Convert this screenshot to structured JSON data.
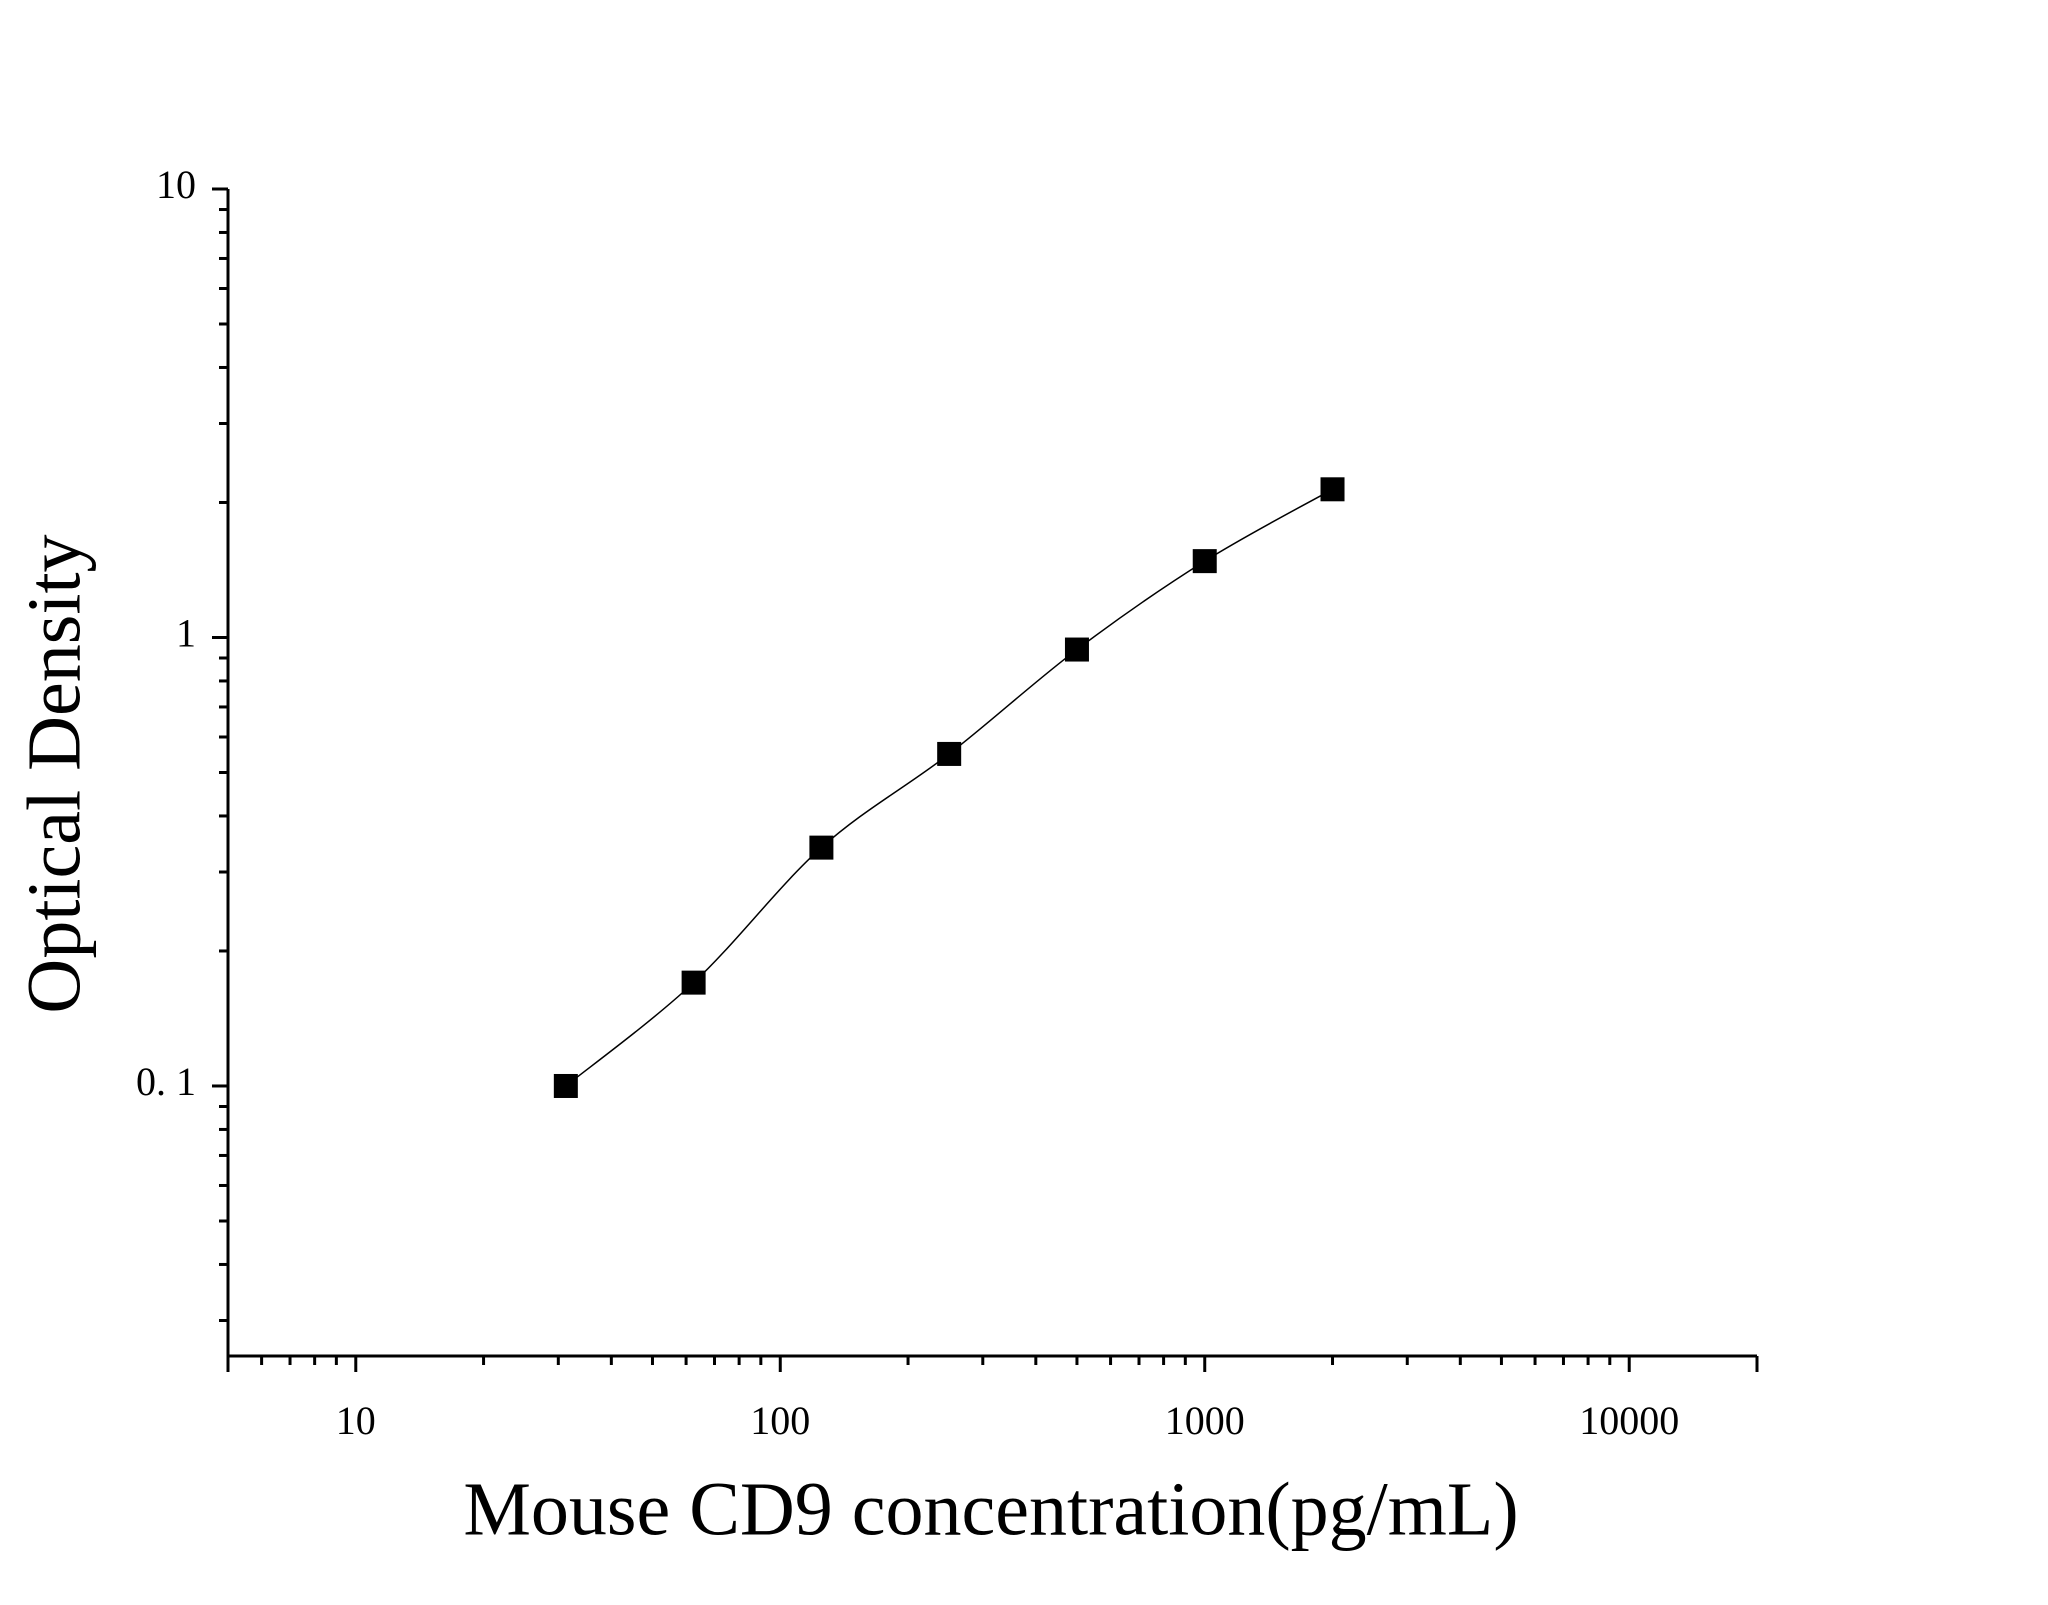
{
  "chart_data": {
    "type": "line",
    "x_label": "Mouse CD9 concentration(pg/mL)",
    "y_label": "Optical Density",
    "x_log": true,
    "y_log": true,
    "minor_ticks": true,
    "marker": "square",
    "color": "#000000",
    "x": [
      31.25,
      62.5,
      125,
      250,
      500,
      1000,
      2000
    ],
    "values": [
      0.1,
      0.17,
      0.34,
      0.55,
      0.94,
      1.48,
      2.14
    ],
    "xlim": [
      5,
      20000
    ],
    "ylim": [
      0.025,
      10
    ],
    "xticks": [
      10,
      100,
      1000,
      10000
    ],
    "yticks": [
      {
        "value": 0.1,
        "label": "0. 1"
      },
      1,
      10
    ]
  }
}
